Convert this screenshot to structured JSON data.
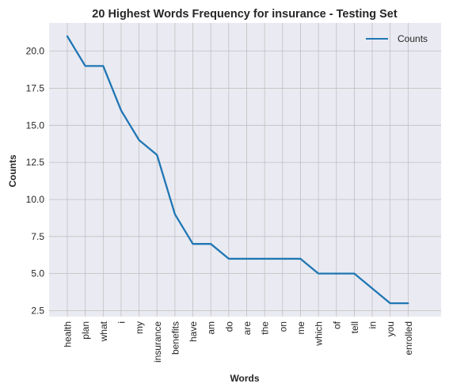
{
  "chart_data": {
    "type": "line",
    "title": "20 Highest Words Frequency for insurance - Testing Set",
    "xlabel": "Words",
    "ylabel": "Counts",
    "categories": [
      "health",
      "plan",
      "what",
      "i",
      "my",
      "insurance",
      "benefits",
      "have",
      "am",
      "do",
      "are",
      "the",
      "on",
      "me",
      "which",
      "of",
      "tell",
      "in",
      "you",
      "enrolled"
    ],
    "series": [
      {
        "name": "Counts",
        "values": [
          21,
          19,
          19,
          16,
          14,
          13,
          9,
          7,
          7,
          6,
          6,
          6,
          6,
          6,
          5,
          5,
          5,
          4,
          3,
          3
        ]
      }
    ],
    "ylim": [
      2.1,
      21.9
    ],
    "yticks": [
      2.5,
      5.0,
      7.5,
      10.0,
      12.5,
      15.0,
      17.5,
      20.0
    ],
    "ytick_labels": [
      "2.5",
      "5.0",
      "7.5",
      "10.0",
      "12.5",
      "15.0",
      "17.5",
      "20.0"
    ],
    "grid": true,
    "legend_position": "top-right",
    "colors": {
      "line": "#1f77b4",
      "plot_bg": "#eaeaf2",
      "grid": "#c0c0c0"
    }
  }
}
